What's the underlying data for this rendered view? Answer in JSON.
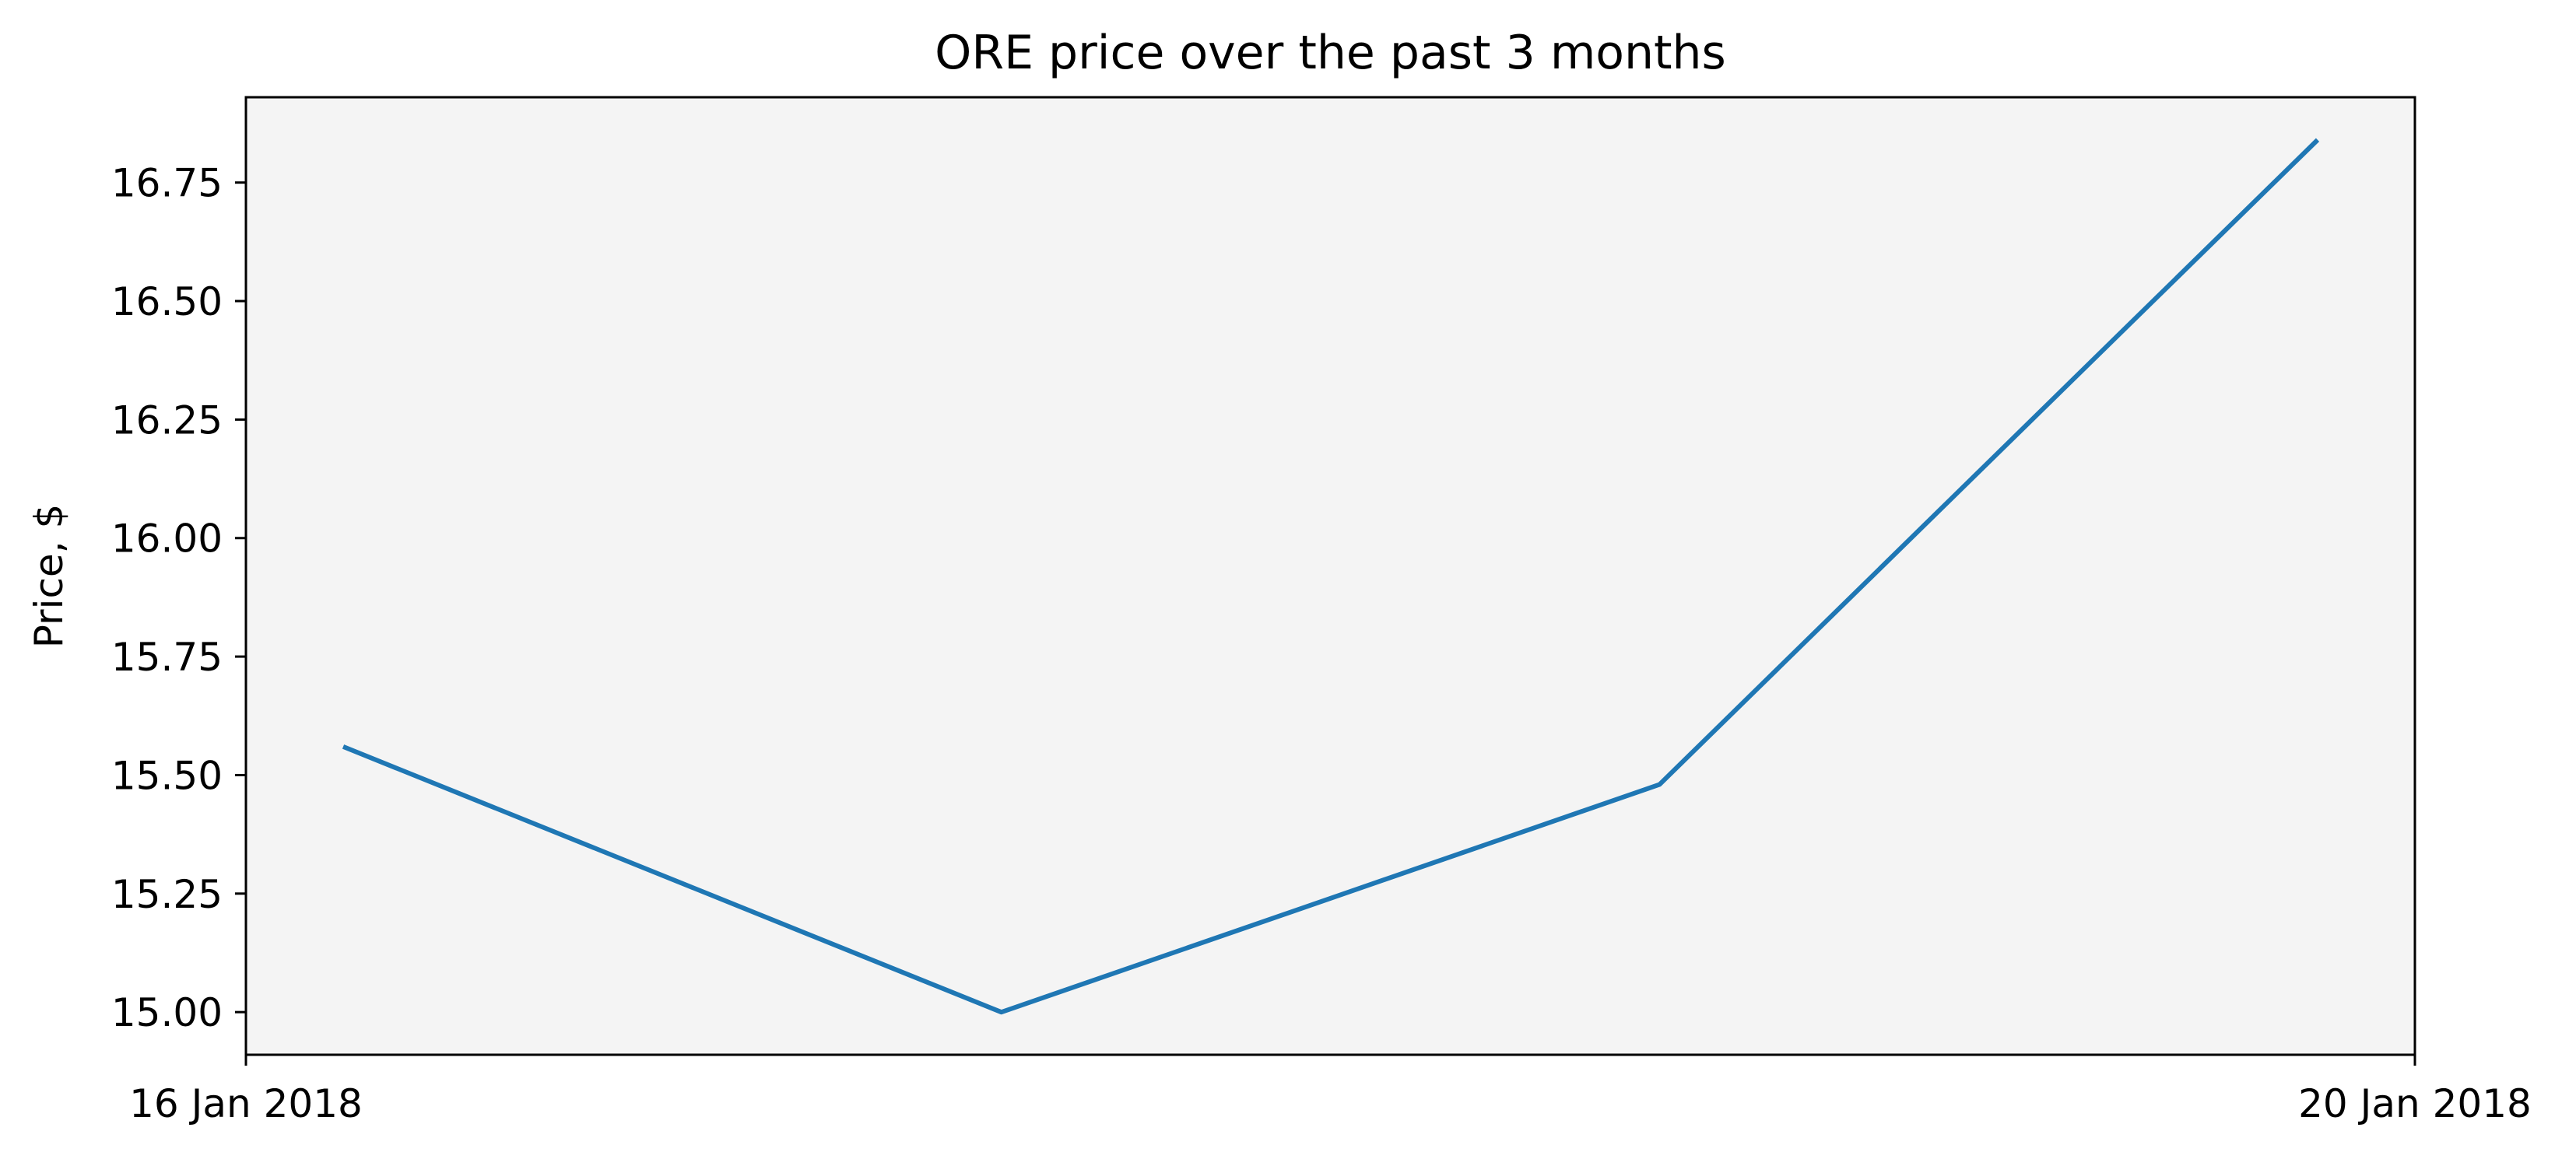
{
  "chart_data": {
    "type": "line",
    "title": "ORE price over the past 3 months",
    "xlabel": "",
    "ylabel": "Price, $",
    "x": [
      "2018-01-16",
      "2018-01-17",
      "2018-01-18",
      "2018-01-19"
    ],
    "series": [
      {
        "values": [
          15.56,
          15.0,
          15.48,
          16.84
        ]
      }
    ],
    "xlim": [
      "2018-01-16",
      "2018-01-20"
    ],
    "ylim": [
      14.91,
      16.93
    ],
    "x_ticks": [
      {
        "value": "2018-01-16",
        "label": "16 Jan 2018"
      },
      {
        "value": "2018-01-20",
        "label": "20 Jan 2018"
      }
    ],
    "y_ticks": [
      {
        "value": 15.0,
        "label": "15.00"
      },
      {
        "value": 15.25,
        "label": "15.25"
      },
      {
        "value": 15.5,
        "label": "15.50"
      },
      {
        "value": 15.75,
        "label": "15.75"
      },
      {
        "value": 16.0,
        "label": "16.00"
      },
      {
        "value": 16.25,
        "label": "16.25"
      },
      {
        "value": 16.5,
        "label": "16.50"
      },
      {
        "value": 16.75,
        "label": "16.75"
      }
    ],
    "grid": false,
    "legend": "none",
    "colors": {
      "line": "#1f77b4",
      "plot_background": "#f4f4f4",
      "axes": "#000000"
    }
  }
}
